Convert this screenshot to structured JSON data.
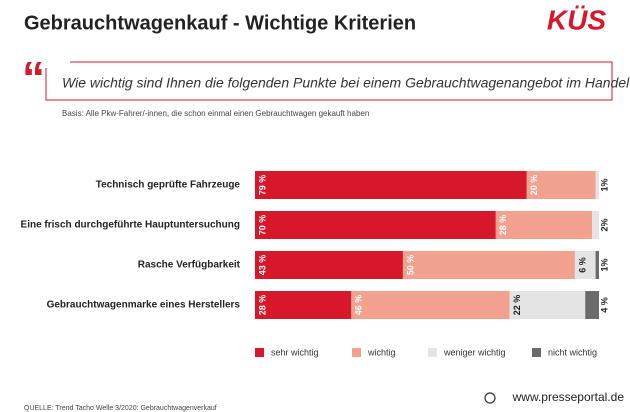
{
  "chart_data": {
    "type": "stacked-barh",
    "title": "Gebrauchtwagenkauf - Wichtige Kriterien",
    "logo": "KÜS",
    "question": "Wie wichtig sind Ihnen die folgenden Punkte bei einem Gebrauchtwagenangebot im Handel?",
    "basis": "Basis: Alle Pkw-Fahrer/-innen, die schon einmal einen Gebrauchtwagen gekauft haben",
    "source": "QUELLE: Trend Tacho Welle 3/2020: Gebrauchtwagenverkauf",
    "watermark": "www.presseportal.de",
    "categories": [
      "Technisch geprüfte Fahrzeuge",
      "Eine frisch durchgeführte Hauptuntersuchung",
      "Rasche Verfügbarkeit",
      "Gebrauchtwagenmarke eines Herstellers"
    ],
    "xlim": [
      0,
      100
    ],
    "series": [
      {
        "name": "sehr wichtig",
        "color": "#d7182a",
        "values": [
          79,
          70,
          43,
          28
        ],
        "value_labels": [
          "79 %",
          "70 %",
          "43 %",
          "28 %"
        ]
      },
      {
        "name": "wichtig",
        "color": "#f2a18f",
        "values": [
          20,
          28,
          50,
          46
        ],
        "value_labels": [
          "20 %",
          "28 %",
          "50 %",
          "46 %"
        ]
      },
      {
        "name": "weniger wichtig",
        "color": "#e4e4e4",
        "values": [
          1,
          2,
          6,
          22
        ],
        "value_labels": [
          "1%",
          "2%",
          "6 %",
          "22 %"
        ]
      },
      {
        "name": "nicht wichtig",
        "color": "#6b6b6b",
        "values": [
          null,
          null,
          1,
          4
        ],
        "value_labels": [
          null,
          null,
          "1%",
          "4 %"
        ]
      }
    ]
  }
}
